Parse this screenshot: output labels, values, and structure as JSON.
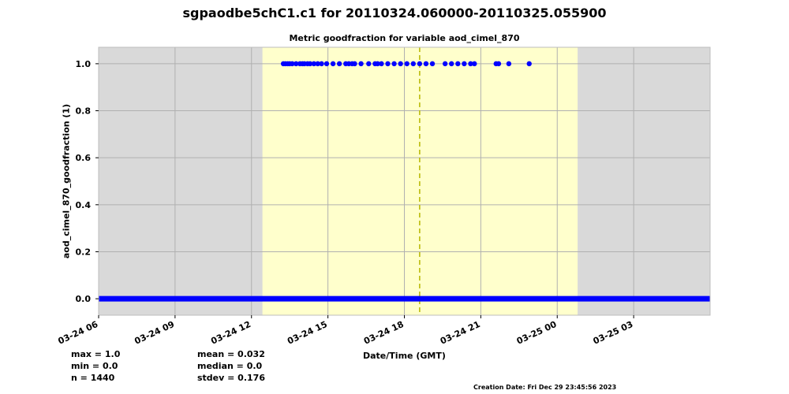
{
  "title": "sgpaodbe5chC1.c1 for 20110324.060000-20110325.055900",
  "subtitle": "Metric goodfraction for variable aod_cimel_870",
  "stats": {
    "max": "max = 1.0",
    "min": "min = 0.0",
    "n": "n = 1440",
    "mean": "mean = 0.032",
    "median": "median = 0.0",
    "stdev": "stdev = 0.176"
  },
  "creation_date": "Creation Date: Fri Dec 29 23:45:56 2023",
  "colors": {
    "out_of_range_bg": "#d9d9d9",
    "daylight_bg": "#ffffcc",
    "points": "#0000ff",
    "noon_line": "#b8b800",
    "grid": "#b0b0b0"
  },
  "chart_data": {
    "type": "scatter",
    "xlabel": "Date/Time (GMT)",
    "ylabel": "aod_cimel_870_goodfraction (1)",
    "x_unit": "hours since 2011-03-24 06:00 GMT",
    "xlim": [
      0,
      24
    ],
    "ylim": [
      -0.07,
      1.07
    ],
    "grid": true,
    "x_tick_values": [
      0,
      3,
      6,
      9,
      12,
      15,
      18,
      21
    ],
    "x_tick_labels": [
      "03-24 06",
      "03-24 09",
      "03-24 12",
      "03-24 15",
      "03-24 18",
      "03-24 21",
      "03-25 00",
      "03-25 03"
    ],
    "y_tick_values": [
      0.0,
      0.2,
      0.4,
      0.6,
      0.8,
      1.0
    ],
    "y_tick_labels": [
      "0.0",
      "0.2",
      "0.4",
      "0.6",
      "0.8",
      "1.0"
    ],
    "daylight_span": [
      6.43,
      18.8
    ],
    "solar_noon": 12.6,
    "baseline_value": 0.0,
    "baseline_x_range": [
      0,
      24
    ],
    "series": [
      {
        "values_y": 1.0,
        "x": [
          7.25,
          7.33,
          7.42,
          7.5,
          7.6,
          7.75,
          7.9,
          8.0,
          8.08,
          8.2,
          8.3,
          8.45,
          8.6,
          8.75,
          8.95,
          9.2,
          9.45,
          9.7,
          9.82,
          9.95,
          10.05,
          10.3,
          10.6,
          10.85,
          10.95,
          11.1,
          11.35,
          11.6,
          11.85,
          12.1,
          12.35,
          12.6,
          12.85,
          13.1,
          13.6,
          13.85,
          14.1,
          14.35,
          14.6,
          14.75,
          15.6,
          15.7,
          16.1,
          16.9
        ]
      }
    ]
  }
}
